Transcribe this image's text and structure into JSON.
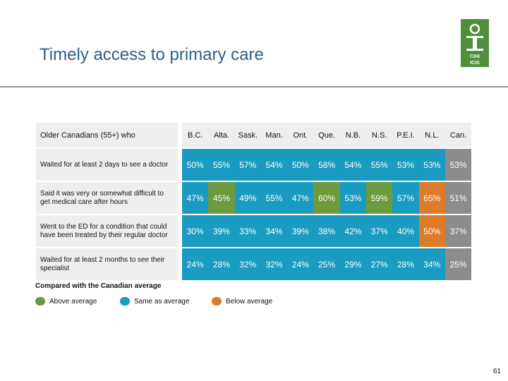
{
  "title": "Timely access to primary care",
  "colors": {
    "above": "#6c9a3c",
    "same": "#1a9bc1",
    "below": "#dd7b2b",
    "canada": "#8c8c8c"
  },
  "table": {
    "header_label": "Older Canadians (55+) who",
    "columns": [
      "B.C.",
      "Alta.",
      "Sask.",
      "Man.",
      "Ont.",
      "Que.",
      "N.B.",
      "N.S.",
      "P.E.I.",
      "N.L.",
      "Can."
    ],
    "rows": [
      {
        "label": "Waited for at least 2 days to see a doctor",
        "values": [
          "50%",
          "55%",
          "57%",
          "54%",
          "50%",
          "58%",
          "54%",
          "55%",
          "53%",
          "53%",
          "53%"
        ],
        "status": [
          "same",
          "same",
          "same",
          "same",
          "same",
          "same",
          "same",
          "same",
          "same",
          "same",
          "canada"
        ]
      },
      {
        "label": "Said it was very or somewhat difficult to get medical care after hours",
        "values": [
          "47%",
          "45%",
          "49%",
          "55%",
          "47%",
          "60%",
          "53%",
          "59%",
          "57%",
          "65%",
          "51%"
        ],
        "status": [
          "same",
          "above",
          "same",
          "same",
          "same",
          "above",
          "same",
          "above",
          "same",
          "below",
          "canada"
        ]
      },
      {
        "label": "Went to the ED for a condition that could have been treated by their regular doctor",
        "values": [
          "30%",
          "39%",
          "33%",
          "34%",
          "39%",
          "38%",
          "42%",
          "37%",
          "40%",
          "50%",
          "37%"
        ],
        "status": [
          "same",
          "same",
          "same",
          "same",
          "same",
          "same",
          "same",
          "same",
          "same",
          "below",
          "canada"
        ]
      },
      {
        "label": "Waited for at least 2 months to see their specialist",
        "values": [
          "24%",
          "28%",
          "32%",
          "32%",
          "24%",
          "25%",
          "29%",
          "27%",
          "28%",
          "34%",
          "25%"
        ],
        "status": [
          "same",
          "same",
          "same",
          "same",
          "same",
          "same",
          "same",
          "same",
          "same",
          "same",
          "canada"
        ]
      }
    ]
  },
  "legend": {
    "title": "Compared with the Canadian average",
    "above": "Above average",
    "same": "Same as average",
    "below": "Below average"
  },
  "logo": {
    "line1": "CIHI",
    "line2": "ICIS"
  },
  "page_number": "61"
}
